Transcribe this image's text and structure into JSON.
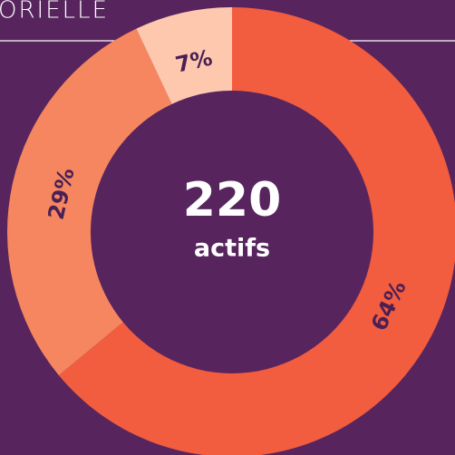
{
  "chart_data": {
    "type": "donut",
    "title": "ORIELLE",
    "categories": [
      null,
      null,
      null
    ],
    "values": [
      64,
      29,
      7
    ],
    "value_labels": [
      "64%",
      "29%",
      "7%"
    ],
    "colors": [
      "#f25c3f",
      "#f5865f",
      "#fdc8ae"
    ],
    "center_value": 220,
    "center_label": "actifs"
  }
}
